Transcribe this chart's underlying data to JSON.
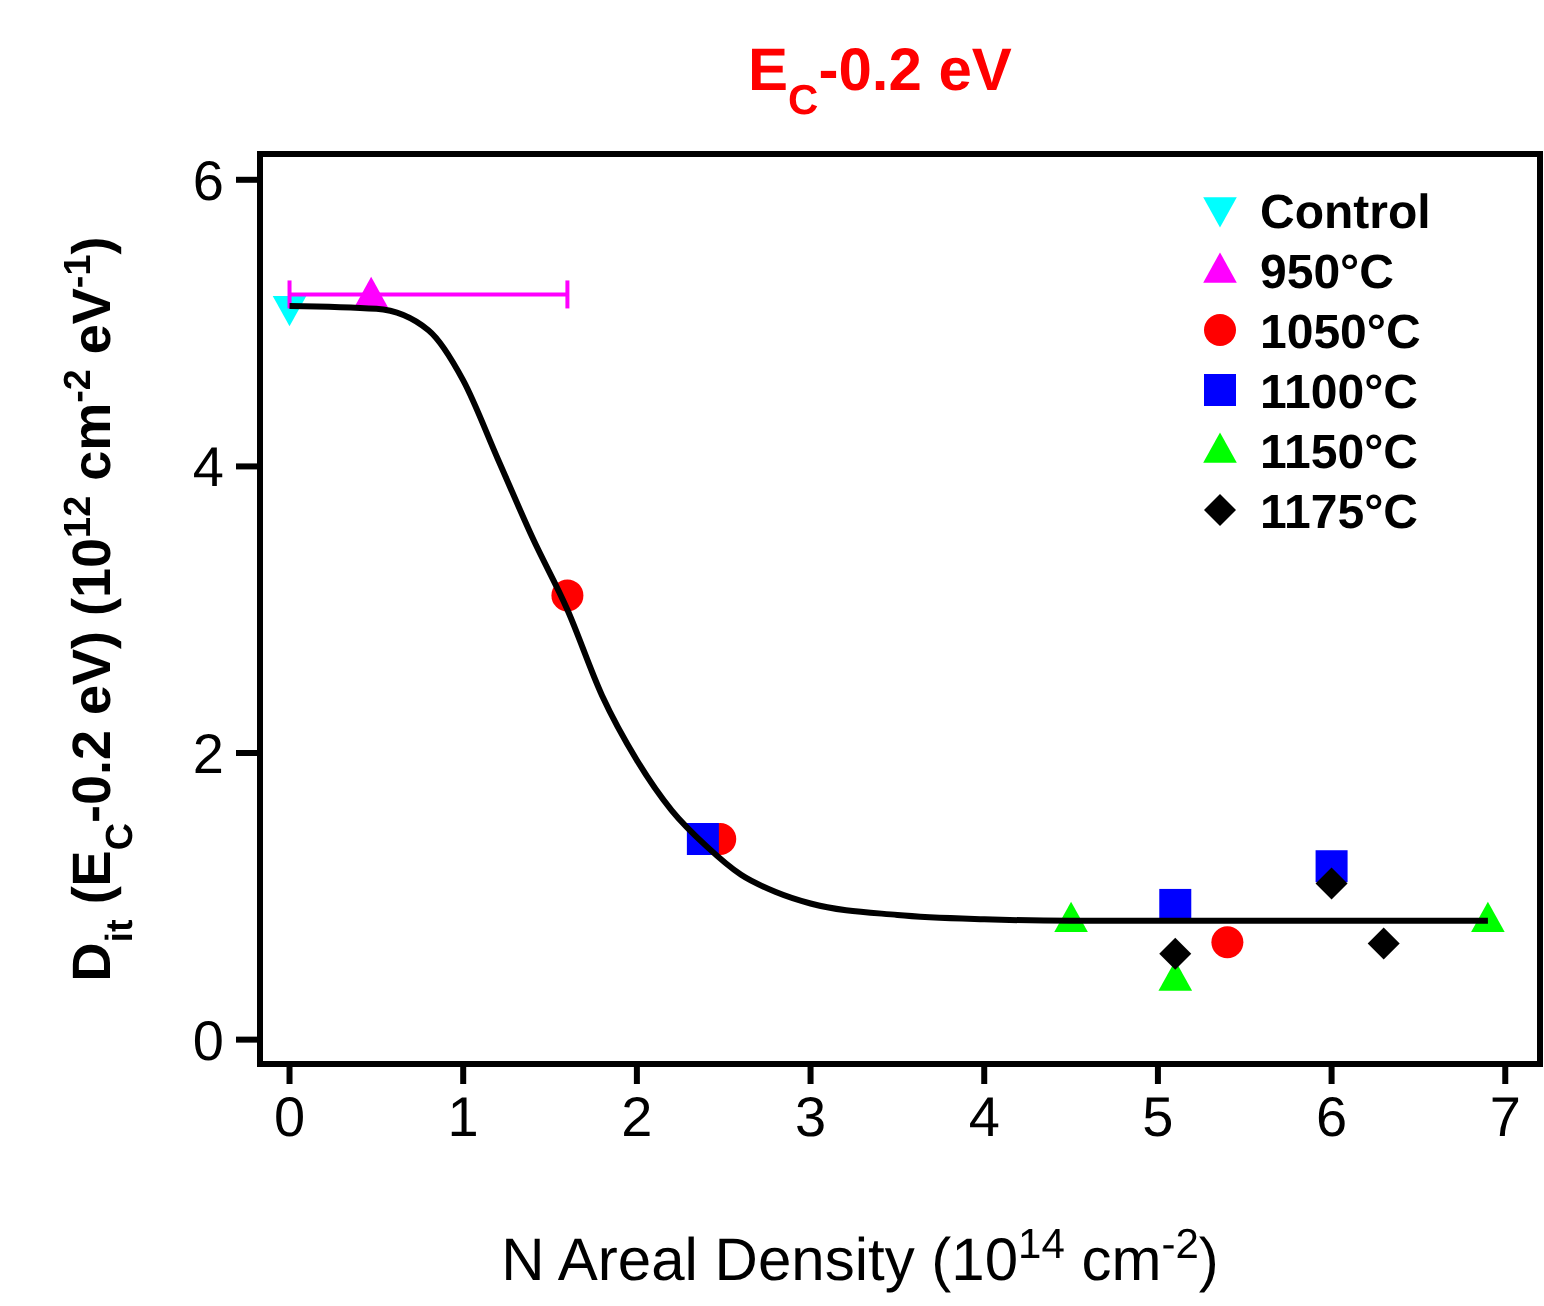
{
  "chart_data": {
    "type": "scatter",
    "title": "E$_{C}$-0.2 eV",
    "xlabel": "N Areal Density (10$^{14}$ cm$^{-2}$)",
    "ylabel": "D$_{it}$ (E$_{C}$-0.2 eV) (10$^{12}$ cm$^{-2}$ eV$^{-1}$)",
    "xlim": [
      -0.17,
      7.2
    ],
    "ylim": [
      -0.17,
      6.18
    ],
    "xticks": [
      0,
      1,
      2,
      3,
      4,
      5,
      6,
      7
    ],
    "yticks": [
      0,
      2,
      4,
      6
    ],
    "legend": "top right",
    "grid": false,
    "series": [
      {
        "name": "Control",
        "color": "#00ffff",
        "marker": "triangle-down",
        "x": [
          0
        ],
        "values": [
          5.1
        ]
      },
      {
        "name": "950°C",
        "color": "#ff00ff",
        "marker": "triangle",
        "x": [
          0.47
        ],
        "values": [
          5.2
        ],
        "xerrors": [
          [
            0,
            1.6
          ]
        ]
      },
      {
        "name": "1050°C",
        "color": "#ff0000",
        "marker": "circle",
        "x": [
          1.6,
          2.48,
          5.4
        ],
        "values": [
          3.1,
          1.4,
          0.68
        ]
      },
      {
        "name": "1100°C",
        "color": "#0000ff",
        "marker": "square",
        "x": [
          2.38,
          5.1,
          6.0
        ],
        "values": [
          1.4,
          0.94,
          1.21
        ]
      },
      {
        "name": "1150°C",
        "color": "#00ff00",
        "marker": "triangle",
        "x": [
          4.5,
          5.1,
          6.9
        ],
        "values": [
          0.84,
          0.43,
          0.84
        ]
      },
      {
        "name": "1175°C",
        "color": "#000000",
        "marker": "diamond",
        "x": [
          5.1,
          6.0,
          6.3
        ],
        "values": [
          0.6,
          1.09,
          0.67
        ]
      },
      {
        "type": "line",
        "color": "#000000",
        "x": [
          0,
          0.5,
          0.8,
          1.0,
          1.2,
          1.4,
          1.6,
          1.8,
          2.0,
          2.2,
          2.4,
          2.6,
          2.8,
          3.0,
          3.5,
          4.0,
          4.5,
          6.9
        ],
        "values": [
          5.12,
          5.1,
          4.95,
          4.6,
          4.05,
          3.5,
          3.0,
          2.4,
          1.95,
          1.6,
          1.35,
          1.15,
          1.03,
          0.95,
          0.87,
          0.84,
          0.83,
          0.83
        ]
      }
    ]
  }
}
